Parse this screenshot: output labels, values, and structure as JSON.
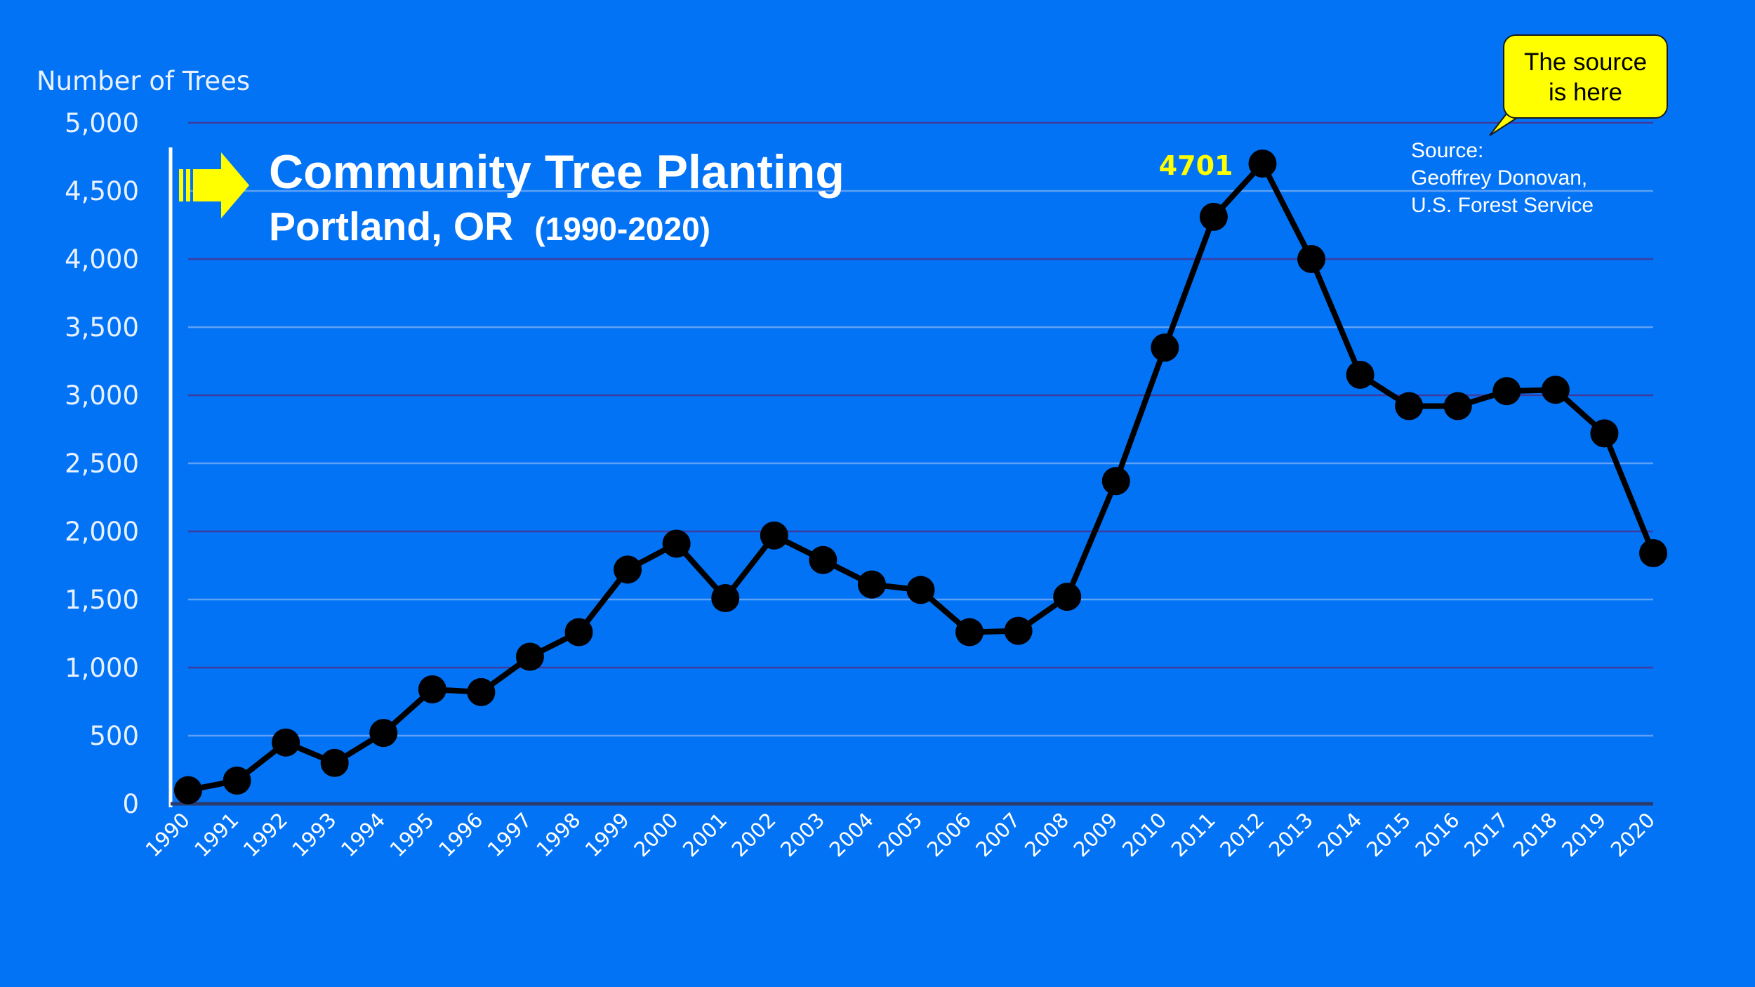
{
  "y_axis_title": "Number of Trees",
  "title": {
    "line1": "Community Tree Planting",
    "line2": "Portland, OR",
    "years": "(1990-2020)"
  },
  "source": {
    "label": "Source:",
    "author": "Geoffrey Donovan,",
    "org": "U.S. Forest Service"
  },
  "callout": {
    "line1": "The source",
    "line2": "is here"
  },
  "peak_label": "4701",
  "colors": {
    "background": "#0373F6",
    "line": "#000000",
    "highlight": "#FFFF00",
    "text": "#FFFFFF"
  },
  "icons": {
    "pointer": "yellow-arrow-icon"
  },
  "chart_data": {
    "type": "line",
    "ylabel": "Number of Trees",
    "ylim": [
      0,
      5000
    ],
    "yticks": [
      0,
      500,
      1000,
      1500,
      2000,
      2500,
      3000,
      3500,
      4000,
      4500,
      5000
    ],
    "ytick_labels": [
      "0",
      "500",
      "1,000",
      "1,500",
      "2,000",
      "2,500",
      "3,000",
      "3,500",
      "4,000",
      "4,500",
      "5,000"
    ],
    "x": [
      "1990",
      "1991",
      "1992",
      "1993",
      "1994",
      "1995",
      "1996",
      "1997",
      "1998",
      "1999",
      "2000",
      "2001",
      "2002",
      "2003",
      "2004",
      "2005",
      "2006",
      "2007",
      "2008",
      "2009",
      "2010",
      "2011",
      "2012",
      "2013",
      "2014",
      "2015",
      "2016",
      "2017",
      "2018",
      "2019",
      "2020"
    ],
    "values": [
      100,
      170,
      450,
      300,
      520,
      840,
      820,
      1080,
      1260,
      1720,
      1910,
      1510,
      1970,
      1790,
      1610,
      1570,
      1260,
      1270,
      1520,
      2370,
      3350,
      4310,
      4701,
      4000,
      3150,
      2920,
      2920,
      3030,
      3040,
      2720,
      1840
    ],
    "annotations": [
      {
        "x": "2012",
        "text": "4701"
      }
    ],
    "grid": true
  }
}
